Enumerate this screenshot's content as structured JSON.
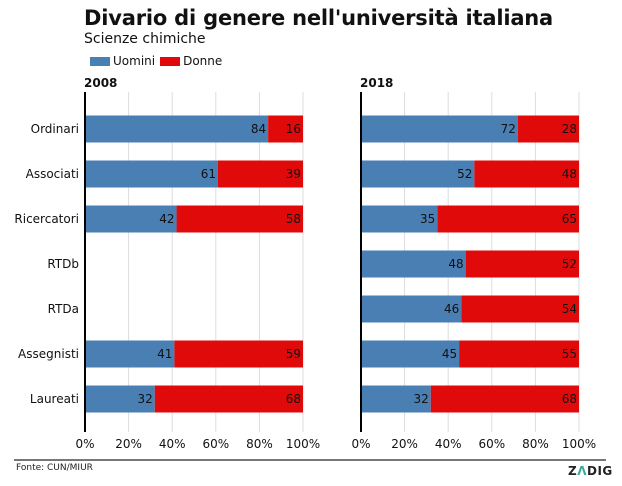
{
  "header": {
    "title": "Divario di genere nell'università italiana",
    "subtitle": "Scienze chimiche"
  },
  "legend": [
    {
      "label": "Uomini",
      "color": "#4a7fb4"
    },
    {
      "label": "Donne",
      "color": "#e00a0a"
    }
  ],
  "footer": {
    "source": "Fonte: CUN/MIUR",
    "brand_prefix": "Z",
    "brand_mark": "Λ",
    "brand_suffix": "DIG"
  },
  "chart_data": [
    {
      "type": "bar",
      "orientation": "horizontal",
      "stacked": true,
      "title": "2008",
      "categories": [
        "Ordinari",
        "Associati",
        "Ricercatori",
        "RTDb",
        "RTDa",
        "Assegnisti",
        "Laureati"
      ],
      "series": [
        {
          "name": "Uomini",
          "color": "#4a7fb4",
          "values": [
            84,
            61,
            42,
            null,
            null,
            41,
            32
          ]
        },
        {
          "name": "Donne",
          "color": "#e00a0a",
          "values": [
            16,
            39,
            58,
            null,
            null,
            59,
            68
          ]
        }
      ],
      "xlim": [
        0,
        100
      ],
      "xticks": [
        "0%",
        "20%",
        "40%",
        "60%",
        "80%",
        "100%"
      ],
      "grid": true
    },
    {
      "type": "bar",
      "orientation": "horizontal",
      "stacked": true,
      "title": "2018",
      "categories": [
        "Ordinari",
        "Associati",
        "Ricercatori",
        "RTDb",
        "RTDa",
        "Assegnisti",
        "Laureati"
      ],
      "series": [
        {
          "name": "Uomini",
          "color": "#4a7fb4",
          "values": [
            72,
            52,
            35,
            48,
            46,
            45,
            32
          ]
        },
        {
          "name": "Donne",
          "color": "#e00a0a",
          "values": [
            28,
            48,
            65,
            52,
            54,
            55,
            68
          ]
        }
      ],
      "xlim": [
        0,
        100
      ],
      "xticks": [
        "0%",
        "20%",
        "40%",
        "60%",
        "80%",
        "100%"
      ],
      "grid": true
    }
  ]
}
